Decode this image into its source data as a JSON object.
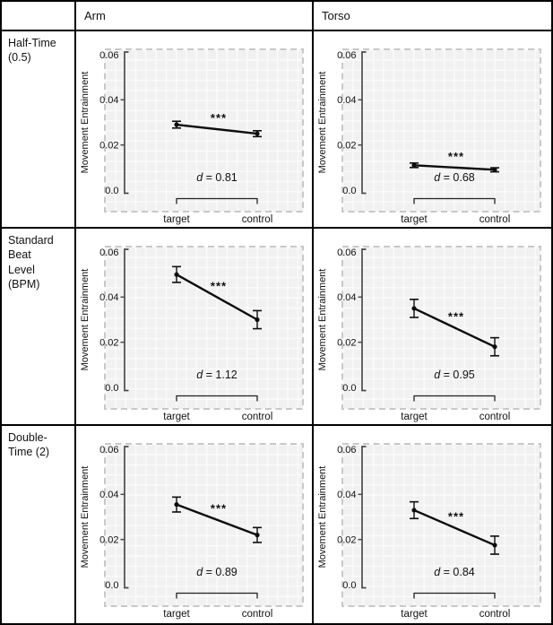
{
  "header": {
    "corner": "",
    "columns": [
      "Arm",
      "Torso"
    ]
  },
  "rows": [
    {
      "label_lines": [
        "Half-Time",
        "(0.5)"
      ]
    },
    {
      "label_lines": [
        "Standard",
        "Beat",
        "Level",
        "(BPM)"
      ]
    },
    {
      "label_lines": [
        "Double-",
        "Time (2)"
      ]
    }
  ],
  "axis": {
    "ylabel": "Movement Entrainment",
    "ylim": [
      0,
      0.06
    ],
    "yticks": [
      {
        "v": 0.0,
        "label": "0.0"
      },
      {
        "v": 0.02,
        "label": "0.02"
      },
      {
        "v": 0.04,
        "label": "0.04"
      },
      {
        "v": 0.06,
        "label": "0.06"
      }
    ],
    "categories": [
      "target",
      "control"
    ]
  },
  "chart_data": [
    {
      "type": "line",
      "row": "Half-Time (0.5)",
      "col": "Arm",
      "categories": [
        "target",
        "control"
      ],
      "values": [
        0.029,
        0.025
      ],
      "errors": [
        0.0015,
        0.0013
      ],
      "significance": "***",
      "effect_size": "0.81"
    },
    {
      "type": "line",
      "row": "Half-Time (0.5)",
      "col": "Torso",
      "categories": [
        "target",
        "control"
      ],
      "values": [
        0.011,
        0.009
      ],
      "errors": [
        0.001,
        0.0009
      ],
      "significance": "***",
      "effect_size": "0.68"
    },
    {
      "type": "line",
      "row": "Standard Beat Level (BPM)",
      "col": "Arm",
      "categories": [
        "target",
        "control"
      ],
      "values": [
        0.05,
        0.03
      ],
      "errors": [
        0.0035,
        0.004
      ],
      "significance": "***",
      "effect_size": "1.12"
    },
    {
      "type": "line",
      "row": "Standard Beat Level (BPM)",
      "col": "Torso",
      "categories": [
        "target",
        "control"
      ],
      "values": [
        0.035,
        0.018
      ],
      "errors": [
        0.004,
        0.004
      ],
      "significance": "***",
      "effect_size": "0.95"
    },
    {
      "type": "line",
      "row": "Double-Time (2)",
      "col": "Arm",
      "categories": [
        "target",
        "control"
      ],
      "values": [
        0.0355,
        0.022
      ],
      "errors": [
        0.0033,
        0.0033
      ],
      "significance": "***",
      "effect_size": "0.89"
    },
    {
      "type": "line",
      "row": "Double-Time (2)",
      "col": "Torso",
      "categories": [
        "target",
        "control"
      ],
      "values": [
        0.033,
        0.0175
      ],
      "errors": [
        0.0037,
        0.004
      ],
      "significance": "***",
      "effect_size": "0.84"
    }
  ],
  "colors": {
    "panel_fill": "#f1f1f1",
    "panel_grid": "#fbfbfb",
    "panel_border": "#c8c8c8",
    "axis": "#4a4a4a",
    "data": "#0d0d0d",
    "table_border": "#000000"
  }
}
